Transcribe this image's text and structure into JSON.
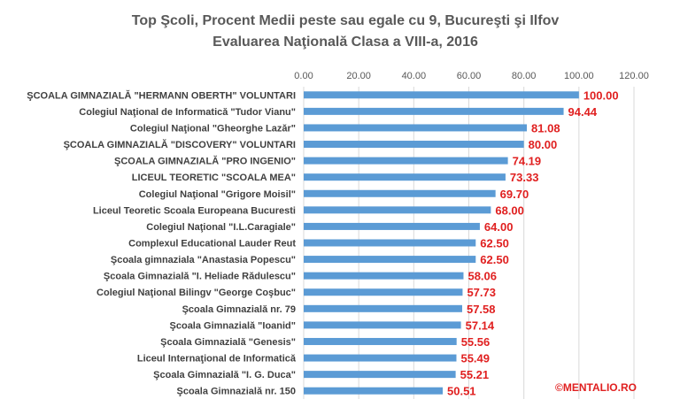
{
  "colors": {
    "bar": "#5B9BD5",
    "label": "#E02020",
    "grid": "#D9D9D9",
    "text": "#595959"
  },
  "credit": "©MENTALIO.RO",
  "chart_data": {
    "type": "bar",
    "orientation": "horizontal",
    "title": [
      "Top Şcoli, Procent Medii peste sau egale cu 9, Bucureşti şi Ilfov",
      "Evaluarea Naţională Clasa a VIII-a, 2016"
    ],
    "xlim": [
      0,
      120
    ],
    "ticks": [
      "0.00",
      "20.00",
      "40.00",
      "60.00",
      "80.00",
      "100.00",
      "120.00"
    ],
    "tick_values": [
      0,
      20,
      40,
      60,
      80,
      100,
      120
    ],
    "axis_position": "top",
    "grid": true,
    "categories": [
      "ŞCOALA GIMNAZIALĂ \"HERMANN OBERTH\" VOLUNTARI",
      "Colegiul Naţional de Informatică \"Tudor Vianu\"",
      "Colegiul Naţional \"Gheorghe Lazăr\"",
      "ŞCOALA GIMNAZIALĂ \"DISCOVERY\" VOLUNTARI",
      "ŞCOALA GIMNAZIALĂ \"PRO INGENIO\"",
      "LICEUL TEORETIC \"SCOALA MEA\"",
      "Colegiul Naţional \"Grigore Moisil\"",
      "Liceul Teoretic Scoala Europeana Bucuresti",
      "Colegiul Naţional \"I.L.Caragiale\"",
      "Complexul Educational Lauder Reut",
      "Şcoala gimnaziala \"Anastasia Popescu\"",
      "Şcoala Gimnazială \"I. Heliade Rădulescu\"",
      "Colegiul Naţional Bilingv \"George Coşbuc\"",
      "Şcoala Gimnazială nr. 79",
      "Şcoala Gimnazială \"Ioanid\"",
      "Şcoala Gimnazială \"Genesis\"",
      "Liceul Internaţional de Informatică",
      "Şcoala Gimnazială \"I. G. Duca\"",
      "Şcoala Gimnazială nr. 150"
    ],
    "values": [
      100.0,
      94.44,
      81.08,
      80.0,
      74.19,
      73.33,
      69.7,
      68.0,
      64.0,
      62.5,
      62.5,
      58.06,
      57.73,
      57.58,
      57.14,
      55.56,
      55.49,
      55.21,
      50.51
    ],
    "labels": [
      "100.00",
      "94.44",
      "81.08",
      "80.00",
      "74.19",
      "73.33",
      "69.70",
      "68.00",
      "64.00",
      "62.50",
      "62.50",
      "58.06",
      "57.73",
      "57.58",
      "57.14",
      "55.56",
      "55.49",
      "55.21",
      "50.51"
    ]
  }
}
